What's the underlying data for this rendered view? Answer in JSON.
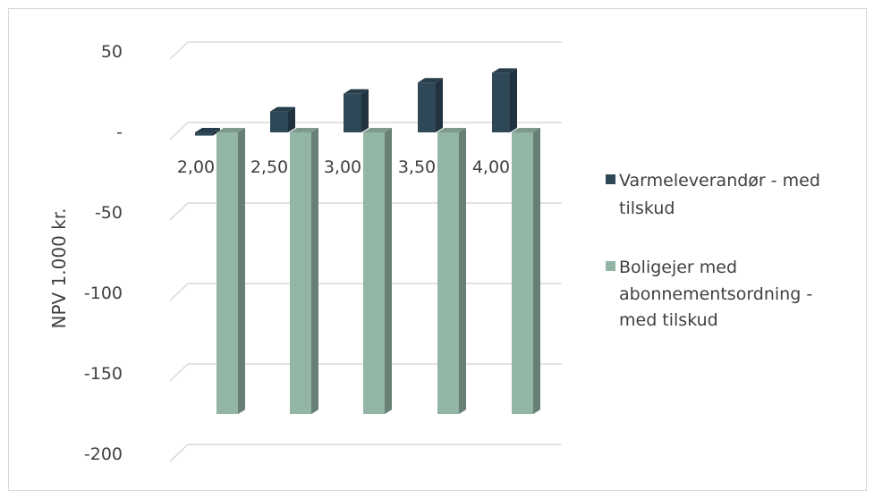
{
  "chart_data": {
    "type": "bar",
    "title": "",
    "xlabel": "",
    "ylabel": "NPV 1.000 kr.",
    "categories": [
      "2,00",
      "2,50",
      "3,00",
      "3,50",
      "4,00"
    ],
    "series": [
      {
        "name": "Varmeleverandør - med tilskud",
        "values": [
          -2,
          13,
          24,
          31,
          37
        ],
        "color": "#2f4858"
      },
      {
        "name": "Boligejer med abonnementsordning - med tilskud",
        "values": [
          -175,
          -175,
          -175,
          -175,
          -175
        ],
        "color": "#93b5a6"
      }
    ],
    "ylim": [
      -200,
      50
    ],
    "yticks": [
      50,
      0,
      -50,
      -100,
      -150,
      -200
    ],
    "ytick_labels": [
      "50",
      "-",
      "-50",
      "-100",
      "-150",
      "-200"
    ],
    "grid": true,
    "legend_position": "right"
  }
}
